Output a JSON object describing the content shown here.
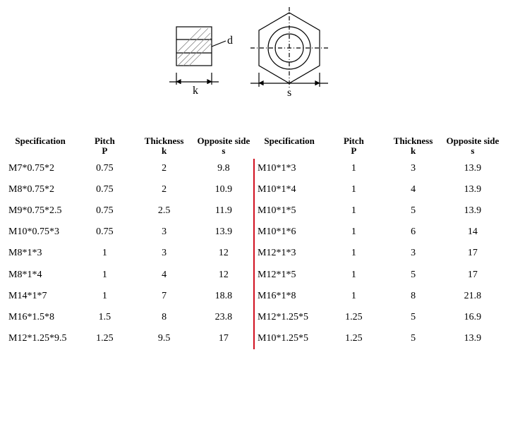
{
  "diagram": {
    "label_d": "d",
    "label_k": "k",
    "label_s": "s",
    "stroke": "#000000",
    "hatch": "#999999"
  },
  "headers": {
    "spec": "Specification",
    "pitch_top": "Pitch",
    "pitch_sub": "P",
    "thick_top": "Thickness",
    "thick_sub": "k",
    "opp_top": "Opposite side",
    "opp_sub": "s"
  },
  "left": [
    {
      "spec": "M7*0.75*2",
      "p": "0.75",
      "k": "2",
      "s": "9.8"
    },
    {
      "spec": "M8*0.75*2",
      "p": "0.75",
      "k": "2",
      "s": "10.9"
    },
    {
      "spec": "M9*0.75*2.5",
      "p": "0.75",
      "k": "2.5",
      "s": "11.9"
    },
    {
      "spec": "M10*0.75*3",
      "p": "0.75",
      "k": "3",
      "s": "13.9"
    },
    {
      "spec": "M8*1*3",
      "p": "1",
      "k": "3",
      "s": "12"
    },
    {
      "spec": "M8*1*4",
      "p": "1",
      "k": "4",
      "s": "12"
    },
    {
      "spec": "M14*1*7",
      "p": "1",
      "k": "7",
      "s": "18.8"
    },
    {
      "spec": "M16*1.5*8",
      "p": "1.5",
      "k": "8",
      "s": "23.8"
    },
    {
      "spec": "M12*1.25*9.5",
      "p": "1.25",
      "k": "9.5",
      "s": "17"
    }
  ],
  "right": [
    {
      "spec": "M10*1*3",
      "p": "1",
      "k": "3",
      "s": "13.9"
    },
    {
      "spec": "M10*1*4",
      "p": "1",
      "k": "4",
      "s": "13.9"
    },
    {
      "spec": "M10*1*5",
      "p": "1",
      "k": "5",
      "s": "13.9"
    },
    {
      "spec": "M10*1*6",
      "p": "1",
      "k": "6",
      "s": "14"
    },
    {
      "spec": "M12*1*3",
      "p": "1",
      "k": "3",
      "s": "17"
    },
    {
      "spec": "M12*1*5",
      "p": "1",
      "k": "5",
      "s": "17"
    },
    {
      "spec": "M16*1*8",
      "p": "1",
      "k": "8",
      "s": "21.8"
    },
    {
      "spec": "M12*1.25*5",
      "p": "1.25",
      "k": "5",
      "s": "16.9"
    },
    {
      "spec": "M10*1.25*5",
      "p": "1.25",
      "k": "5",
      "s": "13.9"
    }
  ]
}
